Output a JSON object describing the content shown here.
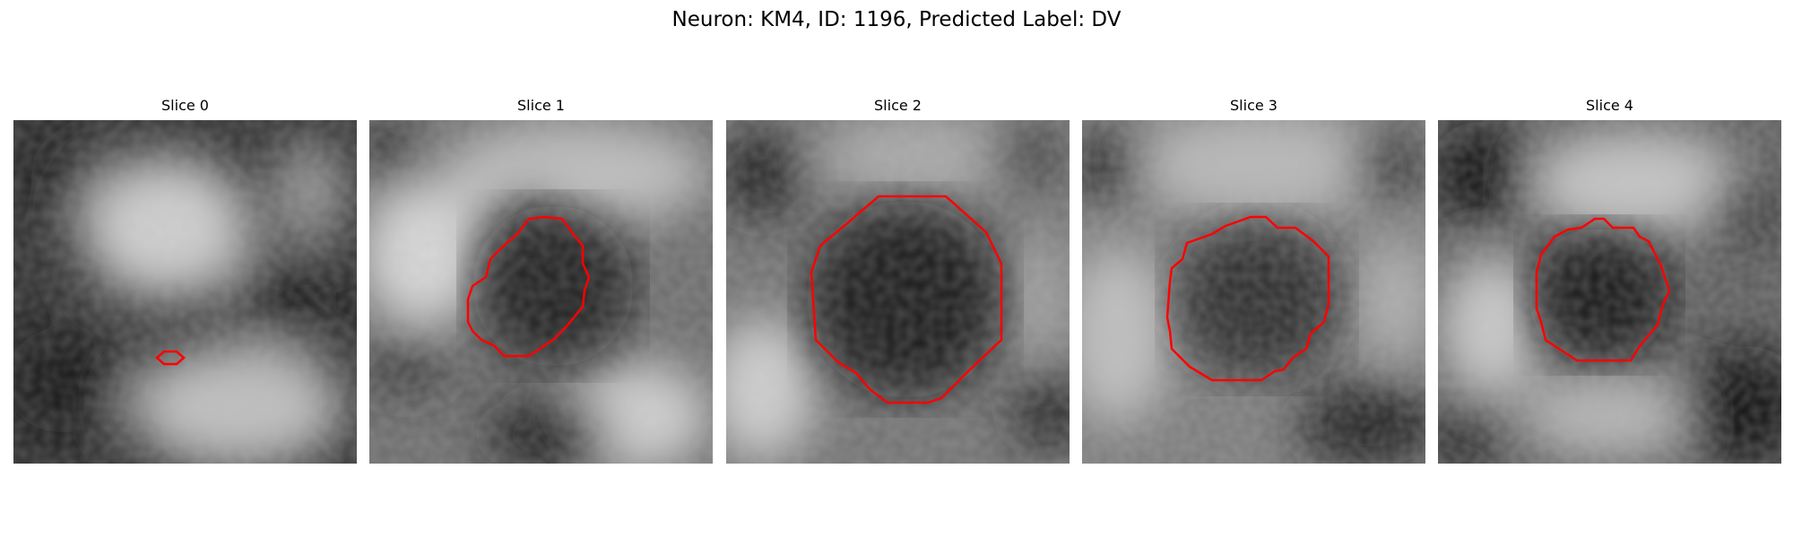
{
  "figure": {
    "title": "Neuron: KM4, ID: 1196, Predicted Label: DV",
    "contour_color": "#ff0000",
    "colormap": "gray"
  },
  "panels": [
    {
      "title": "Slice 0"
    },
    {
      "title": "Slice 1"
    },
    {
      "title": "Slice 2"
    },
    {
      "title": "Slice 3"
    },
    {
      "title": "Slice 4"
    }
  ]
}
